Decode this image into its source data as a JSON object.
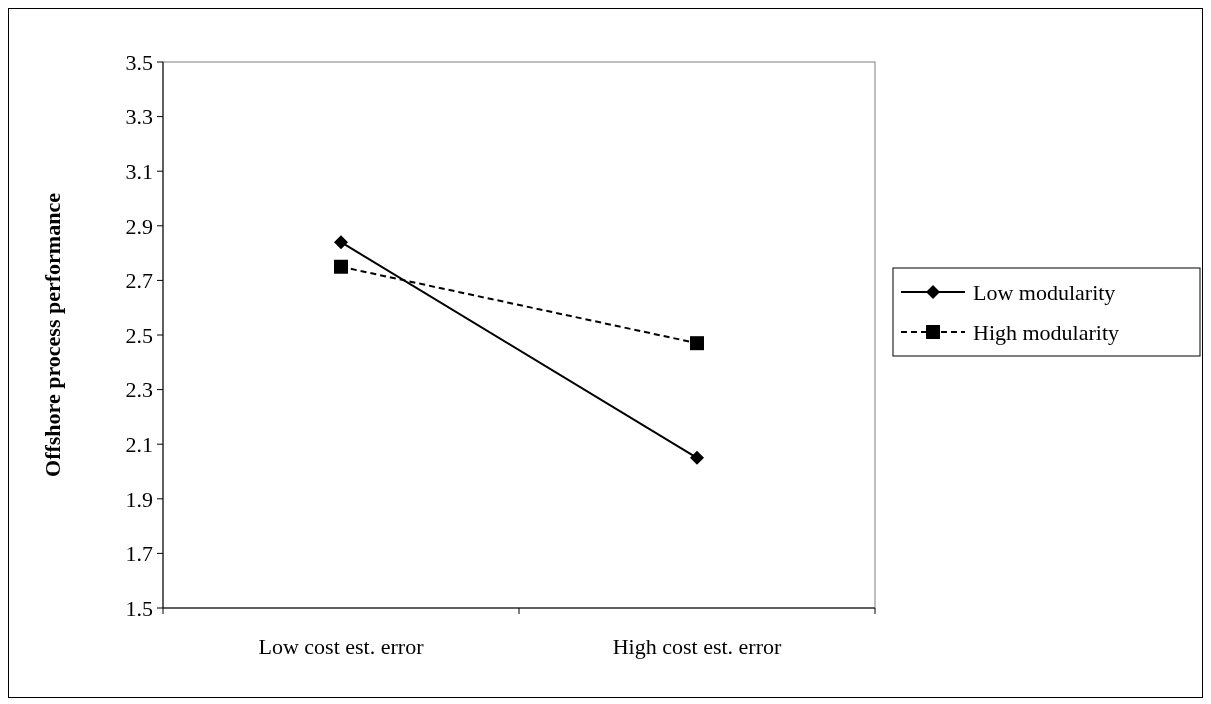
{
  "chart_data": {
    "type": "line",
    "ylabel": "Offshore process performance",
    "categories": [
      "Low cost est. error",
      "High cost est. error"
    ],
    "series": [
      {
        "name": "Low modularity",
        "color": "#000000",
        "values": [
          2.84,
          2.05
        ],
        "marker": "diamond",
        "line_style": "solid"
      },
      {
        "name": "High modularity",
        "color": "#000000",
        "values": [
          2.75,
          2.47
        ],
        "marker": "square",
        "line_style": "dashed"
      }
    ],
    "ylim": [
      1.5,
      3.5
    ],
    "yticks": [
      1.5,
      1.7,
      1.9,
      2.1,
      2.3,
      2.5,
      2.7,
      2.9,
      3.1,
      3.3,
      3.5
    ],
    "grid": false,
    "legend": "right"
  }
}
